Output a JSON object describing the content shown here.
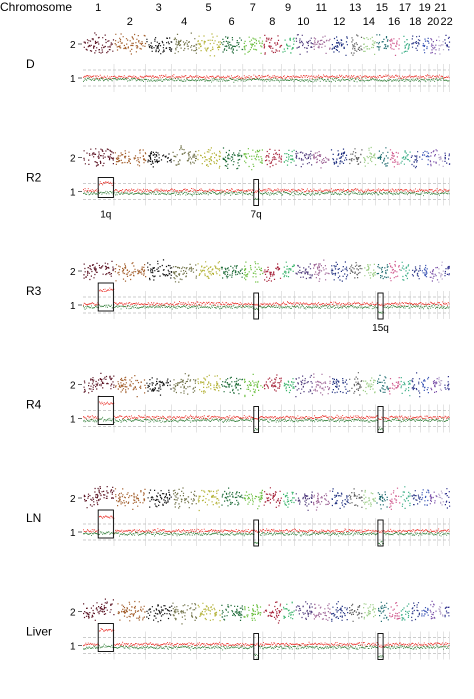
{
  "chart_data": {
    "type": "scatter",
    "header_label": "Chromosome",
    "chromosomes": [
      {
        "label": "1",
        "row": 0,
        "color": "#5c1424",
        "rel": 1.0
      },
      {
        "label": "2",
        "row": 1,
        "color": "#a4602e",
        "rel": 1.0
      },
      {
        "label": "3",
        "row": 0,
        "color": "#111111",
        "rel": 0.82
      },
      {
        "label": "4",
        "row": 1,
        "color": "#6f7046",
        "rel": 0.78
      },
      {
        "label": "5",
        "row": 0,
        "color": "#b5b33a",
        "rel": 0.74
      },
      {
        "label": "6",
        "row": 1,
        "color": "#1c6a36",
        "rel": 0.7
      },
      {
        "label": "7",
        "row": 0,
        "color": "#6bbf3f",
        "rel": 0.62
      },
      {
        "label": "8",
        "row": 1,
        "color": "#a6233a",
        "rel": 0.58
      },
      {
        "label": "9",
        "row": 0,
        "color": "#38b36a",
        "rel": 0.38
      },
      {
        "label": "10",
        "row": 1,
        "color": "#4f3a7c",
        "rel": 0.55
      },
      {
        "label": "11",
        "row": 0,
        "color": "#a26a9a",
        "rel": 0.55
      },
      {
        "label": "12",
        "row": 1,
        "color": "#1e2f80",
        "rel": 0.55
      },
      {
        "label": "13",
        "row": 0,
        "color": "#5e5e5e",
        "rel": 0.42
      },
      {
        "label": "14",
        "row": 1,
        "color": "#9ccd86",
        "rel": 0.4
      },
      {
        "label": "15",
        "row": 0,
        "color": "#1c6a6e",
        "rel": 0.38
      },
      {
        "label": "16",
        "row": 1,
        "color": "#d05a8e",
        "rel": 0.34
      },
      {
        "label": "17",
        "row": 0,
        "color": "#3fb089",
        "rel": 0.3
      },
      {
        "label": "18",
        "row": 1,
        "color": "#2f3a8a",
        "rel": 0.3
      },
      {
        "label": "19",
        "row": 0,
        "color": "#3a55b5",
        "rel": 0.24
      },
      {
        "label": "20",
        "row": 1,
        "color": "#7a4fa8",
        "rel": 0.24
      },
      {
        "label": "21",
        "row": 0,
        "color": "#b7a7cc",
        "rel": 0.16
      },
      {
        "label": "22",
        "row": 1,
        "color": "#2a2a8a",
        "rel": 0.16
      }
    ],
    "tick_labels": [
      "2",
      "1"
    ],
    "red_color": "#e8261e",
    "green_color": "#2b7a32",
    "samples": [
      {
        "name": "D",
        "gain_1q": 0.0,
        "loss_7q": 0.0,
        "loss_15q": 0.0,
        "boxes": [],
        "box_labels": []
      },
      {
        "name": "R2",
        "gain_1q": 0.5,
        "loss_7q": 0.6,
        "loss_15q": 0.0,
        "boxes": [
          "1q",
          "7q"
        ],
        "box_labels": [
          "1q",
          "7q"
        ]
      },
      {
        "name": "R3",
        "gain_1q": 1.0,
        "loss_7q": 0.3,
        "loss_15q": 0.6,
        "boxes": [
          "1q",
          "7q",
          "15q"
        ],
        "box_labels": [
          "15q"
        ]
      },
      {
        "name": "R4",
        "gain_1q": 1.0,
        "loss_7q": 1.0,
        "loss_15q": 1.0,
        "boxes": [
          "1q",
          "7q",
          "15q"
        ],
        "box_labels": []
      },
      {
        "name": "LN",
        "gain_1q": 1.0,
        "loss_7q": 1.0,
        "loss_15q": 1.0,
        "boxes": [
          "1q",
          "7q",
          "15q"
        ],
        "box_labels": []
      },
      {
        "name": "Liver",
        "gain_1q": 1.0,
        "loss_7q": 1.0,
        "loss_15q": 1.0,
        "boxes": [
          "1q",
          "7q",
          "15q"
        ],
        "box_labels": []
      }
    ]
  }
}
